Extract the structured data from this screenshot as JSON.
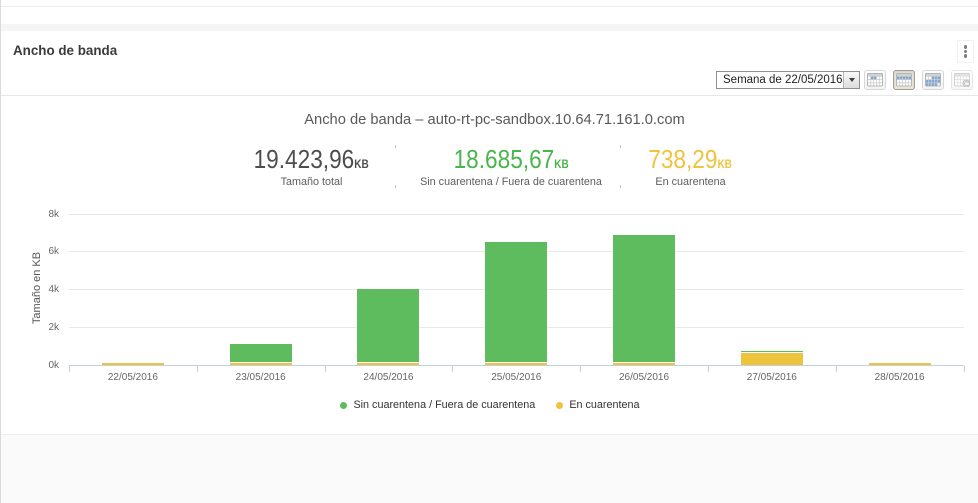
{
  "widget": {
    "title": "Ancho de banda",
    "menu_icon": "kebab-vertical-icon"
  },
  "toolbar": {
    "period_select": {
      "value": "Semana de 22/05/2016",
      "dropdown_icon": "dropdown-arrow-icon"
    },
    "view_buttons": [
      {
        "name": "day-view-button",
        "icon": "calendar-day-icon",
        "active": false,
        "disabled": false
      },
      {
        "name": "week-view-button",
        "icon": "calendar-week-icon",
        "active": true,
        "disabled": false
      },
      {
        "name": "month-view-button",
        "icon": "calendar-month-icon",
        "active": false,
        "disabled": false
      },
      {
        "name": "custom-view-button",
        "icon": "calendar-refresh-icon",
        "active": false,
        "disabled": true
      }
    ]
  },
  "stats": [
    {
      "value": "19.423,96",
      "unit": "KB",
      "label": "Tamaño total",
      "color": "#4d4d4d"
    },
    {
      "value": "18.685,67",
      "unit": "KB",
      "label": "Sin cuarentena / Fuera de cuarentena",
      "color": "#4ab54a"
    },
    {
      "value": "738,29",
      "unit": "KB",
      "label": "En cuarentena",
      "color": "#eec43d"
    }
  ],
  "chart_data": {
    "type": "bar",
    "stacked": true,
    "title": "Ancho de banda – auto-rt-pc-sandbox.10.64.71.161.0.com",
    "categories": [
      "22/05/2016",
      "23/05/2016",
      "24/05/2016",
      "25/05/2016",
      "26/05/2016",
      "27/05/2016",
      "28/05/2016"
    ],
    "series": [
      {
        "name": "En cuarentena",
        "color": "#eec43d",
        "values": [
          10.5,
          12.3,
          15.8,
          11.2,
          9.7,
          668.79,
          10.0
        ]
      },
      {
        "name": "Sin cuarentena / Fuera de cuarentena",
        "color": "#5ebc5e",
        "values": [
          0,
          1150,
          4020,
          6520,
          6900,
          95.67,
          0
        ]
      }
    ],
    "xlabel": "",
    "ylabel": "Tamaño en KB",
    "ylim": [
      0,
      8000
    ],
    "yticks": [
      {
        "value": 0,
        "label": "0k"
      },
      {
        "value": 2000,
        "label": "2k"
      },
      {
        "value": 4000,
        "label": "4k"
      },
      {
        "value": 6000,
        "label": "6k"
      },
      {
        "value": 8000,
        "label": "8k"
      }
    ],
    "grid": true,
    "legend_position": "bottom",
    "legend": [
      {
        "label": "Sin cuarentena / Fuera de cuarentena",
        "color": "#5ebc5e"
      },
      {
        "label": "En cuarentena",
        "color": "#eec43d"
      }
    ]
  }
}
